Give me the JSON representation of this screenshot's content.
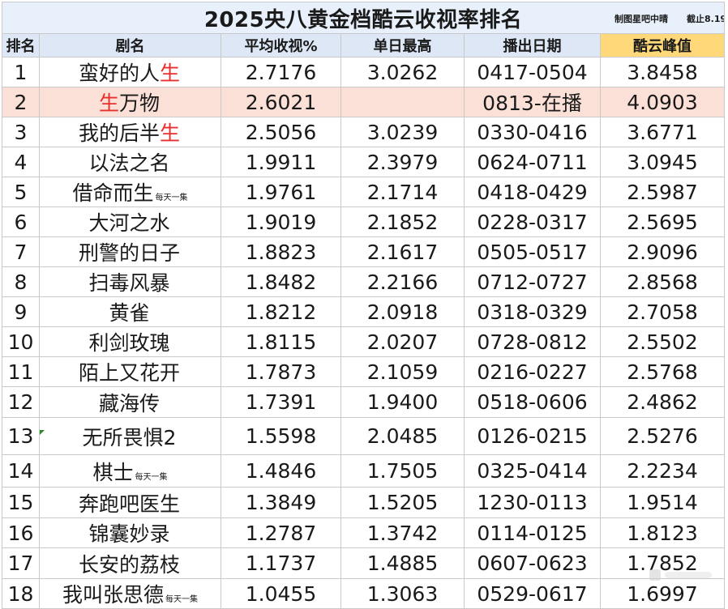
{
  "title": "2025央八黄金档酷云收视率排名",
  "credit_maker": "制图星吧中晴",
  "credit_cutoff": "截止8.19",
  "headers": {
    "rank": "排名",
    "name": "剧名",
    "avg": "平均收视%",
    "peak_day": "单日最高",
    "dates": "播出日期",
    "kuyun_peak": "酷云峰值"
  },
  "note_daily": "每天一集",
  "colors": {
    "header_bg": "#dde7f5",
    "highlight_header": "#ffd87a",
    "highlight_row": "#fbe0d7",
    "red_text": "#e8302e"
  },
  "rows": [
    {
      "rank": "1",
      "name_a": "蛮好的人",
      "name_red": "生",
      "name_b": "",
      "note": "",
      "avg": "2.7176",
      "peak": "3.0262",
      "dates": "0417-0504",
      "kuyun": "3.8458"
    },
    {
      "rank": "2",
      "name_a": "",
      "name_red": "生",
      "name_b": "万物",
      "note": "",
      "avg": "2.6021",
      "peak": "",
      "dates": "0813-在播",
      "kuyun": "4.0903"
    },
    {
      "rank": "3",
      "name_a": "我的后半",
      "name_red": "生",
      "name_b": "",
      "note": "",
      "avg": "2.5056",
      "peak": "3.0239",
      "dates": "0330-0416",
      "kuyun": "3.6771"
    },
    {
      "rank": "4",
      "name_a": "以法之名",
      "name_red": "",
      "name_b": "",
      "note": "",
      "avg": "1.9911",
      "peak": "2.3979",
      "dates": "0624-0711",
      "kuyun": "3.0945"
    },
    {
      "rank": "5",
      "name_a": "借命而生",
      "name_red": "",
      "name_b": "",
      "note": "每天一集",
      "avg": "1.9761",
      "peak": "2.1714",
      "dates": "0418-0429",
      "kuyun": "2.5987"
    },
    {
      "rank": "6",
      "name_a": "大河之水",
      "name_red": "",
      "name_b": "",
      "note": "",
      "avg": "1.9019",
      "peak": "2.1852",
      "dates": "0228-0317",
      "kuyun": "2.5695"
    },
    {
      "rank": "7",
      "name_a": "刑警的日子",
      "name_red": "",
      "name_b": "",
      "note": "",
      "avg": "1.8823",
      "peak": "2.1617",
      "dates": "0505-0517",
      "kuyun": "2.9096"
    },
    {
      "rank": "8",
      "name_a": "扫毒风暴",
      "name_red": "",
      "name_b": "",
      "note": "",
      "avg": "1.8482",
      "peak": "2.2166",
      "dates": "0712-0727",
      "kuyun": "2.8568"
    },
    {
      "rank": "9",
      "name_a": "黄雀",
      "name_red": "",
      "name_b": "",
      "note": "",
      "avg": "1.8212",
      "peak": "2.0918",
      "dates": "0318-0329",
      "kuyun": "2.7058"
    },
    {
      "rank": "10",
      "name_a": "利剑玫瑰",
      "name_red": "",
      "name_b": "",
      "note": "",
      "avg": "1.8115",
      "peak": "2.0207",
      "dates": "0728-0812",
      "kuyun": "2.5502"
    },
    {
      "rank": "11",
      "name_a": "陌上又花开",
      "name_red": "",
      "name_b": "",
      "note": "",
      "avg": "1.7873",
      "peak": "2.1059",
      "dates": "0216-0227",
      "kuyun": "2.5768"
    },
    {
      "rank": "12",
      "name_a": "藏海传",
      "name_red": "",
      "name_b": "",
      "note": "",
      "avg": "1.7391",
      "peak": "1.9400",
      "dates": "0518-0606",
      "kuyun": "2.4862"
    },
    {
      "rank": "13",
      "name_a": "无所畏惧2",
      "name_red": "",
      "name_b": "",
      "note": "",
      "avg": "1.5598",
      "peak": "2.0485",
      "dates": "0126-0215",
      "kuyun": "2.5276"
    },
    {
      "rank": "14",
      "name_a": "棋士",
      "name_red": "",
      "name_b": "",
      "note": "每天一集",
      "avg": "1.4846",
      "peak": "1.7505",
      "dates": "0325-0414",
      "kuyun": "2.2234"
    },
    {
      "rank": "15",
      "name_a": "奔跑吧医生",
      "name_red": "",
      "name_b": "",
      "note": "",
      "avg": "1.3849",
      "peak": "1.5205",
      "dates": "1230-0113",
      "kuyun": "1.9514"
    },
    {
      "rank": "16",
      "name_a": "锦囊妙录",
      "name_red": "",
      "name_b": "",
      "note": "",
      "avg": "1.2787",
      "peak": "1.3742",
      "dates": "0114-0125",
      "kuyun": "1.8123"
    },
    {
      "rank": "17",
      "name_a": "长安的荔枝",
      "name_red": "",
      "name_b": "",
      "note": "",
      "avg": "1.1737",
      "peak": "1.4885",
      "dates": "0607-0623",
      "kuyun": "1.7852"
    },
    {
      "rank": "18",
      "name_a": "我叫张思德",
      "name_red": "",
      "name_b": "",
      "note": "每天一集",
      "avg": "1.0455",
      "peak": "1.3063",
      "dates": "0529-0617",
      "kuyun": "1.6997"
    }
  ]
}
